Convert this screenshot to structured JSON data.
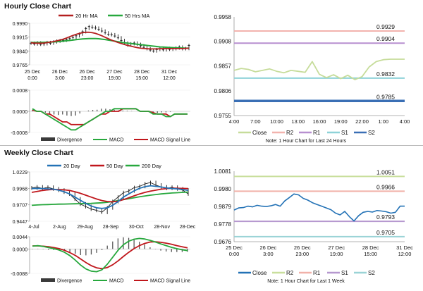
{
  "hourly_title": "Hourly Close Chart",
  "weekly_title": "Weekly Close Chart",
  "colors": {
    "ma_short": "#b41f1f",
    "ma_long": "#27a83d",
    "price": "#1a1a1a",
    "macd": "#27a83d",
    "signal": "#c0161b",
    "close": "#c6dc9a",
    "r2": "#f2b3ae",
    "r1": "#b78fd0",
    "s1": "#8ed2d8",
    "s2": "#3a6fb5",
    "wclose": "#2372b6",
    "wr2": "#c9df9d",
    "wr1": "#f1b1a9",
    "ws1": "#b698cf",
    "ws2": "#9ad3d6"
  },
  "chart_data": [
    {
      "type": "line",
      "id": "hourly_price",
      "legend": [
        "20 Hr MA",
        "50 Hrs MA"
      ],
      "yticks": [
        "0.9990",
        "0.9915",
        "0.9840",
        "0.9765"
      ],
      "ylim": [
        0.9765,
        0.999
      ],
      "xticks": [
        [
          "25 Dec",
          "0:00"
        ],
        [
          "26 Dec",
          "3:00"
        ],
        [
          "26 Dec",
          "23:00"
        ],
        [
          "27 Dec",
          "19:00"
        ],
        [
          "28 Dec",
          "15:00"
        ],
        [
          "31 Dec",
          "12:00"
        ]
      ],
      "close": [
        0.9882,
        0.9878,
        0.9884,
        0.9876,
        0.9879,
        0.9886,
        0.9882,
        0.9889,
        0.9893,
        0.9896,
        0.9898,
        0.9902,
        0.9907,
        0.9913,
        0.9922,
        0.9931,
        0.9944,
        0.9962,
        0.9972,
        0.9968,
        0.9964,
        0.9957,
        0.9948,
        0.9938,
        0.993,
        0.9928,
        0.9921,
        0.9911,
        0.9897,
        0.9883,
        0.9872,
        0.9879,
        0.9883,
        0.9876,
        0.9868,
        0.986,
        0.9852,
        0.9845,
        0.984,
        0.9848,
        0.9851,
        0.9846,
        0.9854,
        0.9849,
        0.9852,
        0.9856,
        0.9861,
        0.9852,
        0.9853,
        0.987
      ],
      "ma20": [
        0.9884,
        0.9883,
        0.9882,
        0.9882,
        0.9883,
        0.9885,
        0.9888,
        0.9891,
        0.9895,
        0.9899,
        0.9904,
        0.991,
        0.9917,
        0.9924,
        0.993,
        0.9935,
        0.9939,
        0.9941,
        0.9941,
        0.9939,
        0.9935,
        0.9929,
        0.9922,
        0.9914,
        0.9906,
        0.9899,
        0.9892,
        0.9886,
        0.988,
        0.9875,
        0.987,
        0.9866,
        0.9862,
        0.9858,
        0.9855,
        0.9853,
        0.9852,
        0.9851,
        0.9851,
        0.9851,
        0.9852,
        0.9853,
        0.9853,
        0.9853,
        0.9853,
        0.9853,
        0.9853,
        0.9853,
        0.9854,
        0.9855
      ],
      "ma50": [
        0.9886,
        0.9886,
        0.9886,
        0.9886,
        0.9887,
        0.9887,
        0.9888,
        0.9889,
        0.989,
        0.9892,
        0.9893,
        0.9895,
        0.9897,
        0.9899,
        0.9901,
        0.9903,
        0.9905,
        0.9906,
        0.9907,
        0.9907,
        0.9907,
        0.9906,
        0.9904,
        0.9902,
        0.9899,
        0.9896,
        0.9893,
        0.989,
        0.9887,
        0.9884,
        0.9882,
        0.988,
        0.9878,
        0.9876,
        0.9874,
        0.9872,
        0.987,
        0.9868,
        0.9866,
        0.9864,
        0.9862,
        0.9861,
        0.986,
        0.9859,
        0.9858,
        0.9857,
        0.9856,
        0.9856,
        0.9855,
        0.9855
      ]
    },
    {
      "type": "bar",
      "id": "hourly_macd",
      "legend": [
        "Divergence",
        "MACD",
        "MACD Signal Line"
      ],
      "yticks": [
        "0.0008",
        "0.0000",
        "-0.0008"
      ],
      "ylim": [
        -0.0008,
        0.0008
      ],
      "macd": [
        0.0001,
        0.0,
        0.0,
        -0.0001,
        -0.0002,
        -0.0003,
        -0.0004,
        -0.0005,
        -0.0006,
        -0.0007,
        -0.0007,
        -0.0006,
        -0.0005,
        -0.0004,
        -0.0003,
        -0.0002,
        -0.0001,
        0.0,
        0.0,
        0.0001,
        0.0001,
        0.0001,
        0.0001,
        0.0001,
        0.0001,
        0.0,
        0.0,
        0.0,
        -0.0001,
        -0.0001,
        -0.0001,
        -0.0002,
        -0.0002,
        -0.0001,
        -0.0001,
        -0.0001,
        -0.0001
      ],
      "signal": [
        5e-05,
        0.0,
        0.0,
        -0.0001,
        -0.0001,
        -0.0002,
        -0.0003,
        -0.0004,
        -0.0004,
        -0.0005,
        -0.0005,
        -0.0005,
        -0.0005,
        -0.0004,
        -0.0003,
        -0.0002,
        -0.0001,
        -0.0001,
        0.0,
        0.0,
        0.0,
        0.0001,
        0.0001,
        0.0001,
        0.0001,
        0.0,
        0.0,
        0.0,
        -5e-05,
        -0.0001,
        -0.0001,
        -0.0001,
        -0.0002,
        -0.0001,
        -0.0001,
        -0.0001,
        -0.0001
      ],
      "divergence": [
        5e-05,
        0.0,
        0.0,
        -5e-05,
        -0.0001,
        -0.00012,
        -0.00014,
        -0.00012,
        -0.00016,
        -0.00018,
        -0.00016,
        -8e-05,
        0.0,
        3e-05,
        5e-05,
        6e-05,
        0.0001,
        0.0001,
        8e-05,
        6e-05,
        4e-05,
        3e-05,
        2e-05,
        1e-05,
        0.0,
        0.0,
        -2e-05,
        -3e-05,
        -5e-05,
        -6e-05,
        -4e-05,
        -4e-05,
        -2e-05,
        0.0,
        0.0,
        0.0,
        0.0
      ]
    },
    {
      "type": "line",
      "id": "hourly_levels",
      "yticks": [
        "0.9958",
        "0.9908",
        "0.9857",
        "0.9806",
        "0.9755"
      ],
      "ylim": [
        0.9755,
        0.9958
      ],
      "xticks": [
        "4:00",
        "7:00",
        "10:00",
        "13:00",
        "16:00",
        "19:00",
        "22:00",
        "1:00",
        "4:00"
      ],
      "levels": [
        {
          "name": "R2",
          "value": 0.9929,
          "label": "0.9929"
        },
        {
          "name": "R1",
          "value": 0.9904,
          "label": "0.9904"
        },
        {
          "name": "S1",
          "value": 0.9832,
          "label": "0.9832"
        },
        {
          "name": "S2",
          "value": 0.9785,
          "label": "0.9785"
        }
      ],
      "close": [
        0.9848,
        0.9852,
        0.985,
        0.9845,
        0.9848,
        0.9851,
        0.9846,
        0.9843,
        0.9848,
        0.9846,
        0.9844,
        0.9866,
        0.984,
        0.9833,
        0.9839,
        0.9831,
        0.9838,
        0.9829,
        0.9835,
        0.9855,
        0.9866,
        0.987,
        0.9871,
        0.9871,
        0.9871
      ],
      "legend": [
        "Close",
        "R2",
        "R1",
        "S1",
        "S2"
      ],
      "note": "Note: 1 Hour Chart for Last 24 Hours"
    },
    {
      "type": "line",
      "id": "weekly_price",
      "legend": [
        "20 Day",
        "50 Day",
        "200 Day"
      ],
      "yticks": [
        "1.0229",
        "0.9968",
        "0.9707",
        "0.9447"
      ],
      "ylim": [
        0.9447,
        1.0229
      ],
      "xticks": [
        "4-Jul",
        "2-Aug",
        "29-Aug",
        "28-Sep",
        "30-Oct",
        "28-Nov",
        "28-Dec"
      ],
      "close": [
        0.9975,
        0.999,
        0.9965,
        0.9985,
        0.996,
        0.994,
        0.991,
        0.988,
        0.98,
        0.972,
        0.968,
        0.964,
        0.962,
        0.959,
        0.966,
        0.976,
        0.983,
        0.99,
        0.993,
        0.998,
        1.0,
        1.004,
        1.006,
        1.002,
        0.999,
        0.997,
        0.9985,
        0.996,
        0.994,
        0.988
      ],
      "d20": [
        0.9965,
        0.9968,
        0.9965,
        0.996,
        0.9955,
        0.994,
        0.9915,
        0.988,
        0.983,
        0.978,
        0.973,
        0.969,
        0.966,
        0.965,
        0.966,
        0.97,
        0.976,
        0.983,
        0.988,
        0.993,
        0.997,
        0.9995,
        1.001,
        1.0,
        0.999,
        0.9975,
        0.9965,
        0.996,
        0.995,
        0.9935
      ],
      "d50": [
        0.9905,
        0.992,
        0.9935,
        0.9945,
        0.995,
        0.995,
        0.9945,
        0.9935,
        0.9915,
        0.989,
        0.986,
        0.983,
        0.98,
        0.9775,
        0.976,
        0.9755,
        0.9765,
        0.979,
        0.982,
        0.985,
        0.988,
        0.9905,
        0.9925,
        0.994,
        0.9955,
        0.9965,
        0.997,
        0.997,
        0.9968,
        0.9965
      ],
      "d200": [
        0.97,
        0.9705,
        0.971,
        0.9712,
        0.9715,
        0.9718,
        0.972,
        0.9722,
        0.9724,
        0.9726,
        0.9728,
        0.973,
        0.9735,
        0.974,
        0.9748,
        0.976,
        0.9775,
        0.979,
        0.9805,
        0.982,
        0.9835,
        0.9848,
        0.986,
        0.987,
        0.988,
        0.9888,
        0.9895,
        0.99,
        0.9905,
        0.991
      ]
    },
    {
      "type": "bar",
      "id": "weekly_macd",
      "legend": [
        "Divergence",
        "MACD",
        "MACD Signal Line"
      ],
      "yticks": [
        "0.0044",
        "0.0000",
        "-0.0088"
      ],
      "ylim": [
        -0.0088,
        0.0044
      ],
      "macd": [
        0.001,
        0.0012,
        0.0009,
        0.0005,
        0.0001,
        -0.0004,
        -0.0012,
        -0.0024,
        -0.004,
        -0.0058,
        -0.0072,
        -0.008,
        -0.0082,
        -0.0075,
        -0.0055,
        -0.003,
        -0.0005,
        0.0015,
        0.0028,
        0.0035,
        0.0038,
        0.0036,
        0.0031,
        0.0025,
        0.0018,
        0.0012,
        0.0006,
        0.0001,
        -0.0003,
        -0.0006
      ],
      "signal": [
        0.0011,
        0.0011,
        0.001,
        0.0008,
        0.0005,
        0.0001,
        -0.0005,
        -0.0013,
        -0.0023,
        -0.0036,
        -0.0049,
        -0.006,
        -0.0068,
        -0.0071,
        -0.0067,
        -0.0057,
        -0.0043,
        -0.0027,
        -0.0012,
        0.0001,
        0.0012,
        0.002,
        0.0025,
        0.0026,
        0.0024,
        0.0021,
        0.0017,
        0.0012,
        0.0008,
        0.0004
      ],
      "divergence": [
        -0.0001,
        0.0001,
        -0.0001,
        -0.0003,
        -0.0004,
        -0.0005,
        -0.0007,
        -0.0011,
        -0.0017,
        -0.0022,
        -0.0023,
        -0.002,
        -0.0014,
        -0.0004,
        0.0012,
        0.0027,
        0.0038,
        0.0042,
        0.004,
        0.0034,
        0.0026,
        0.0016,
        0.0006,
        -0.0001,
        -0.0006,
        -0.0009,
        -0.0011,
        -0.0011,
        -0.0011,
        -0.001
      ]
    },
    {
      "type": "line",
      "id": "weekly_levels",
      "yticks": [
        "1.0081",
        "0.9980",
        "0.9879",
        "0.9778",
        "0.9676"
      ],
      "ylim": [
        0.9676,
        1.0081
      ],
      "xticks": [
        [
          "25 Dec",
          "0:00"
        ],
        [
          "26 Dec",
          "3:00"
        ],
        [
          "26 Dec",
          "23:00"
        ],
        [
          "27 Dec",
          "19:00"
        ],
        [
          "28 Dec",
          "15:00"
        ],
        [
          "31 Dec",
          "12:00"
        ]
      ],
      "levels": [
        {
          "name": "R2",
          "value": 1.0051,
          "label": "1.0051"
        },
        {
          "name": "R1",
          "value": 0.9966,
          "label": "0.9966"
        },
        {
          "name": "S1",
          "value": 0.9793,
          "label": "0.9793"
        },
        {
          "name": "S2",
          "value": 0.9705,
          "label": "0.9705"
        }
      ],
      "close": [
        0.9858,
        0.987,
        0.9872,
        0.988,
        0.9876,
        0.9885,
        0.988,
        0.9878,
        0.9882,
        0.989,
        0.988,
        0.991,
        0.993,
        0.995,
        0.9945,
        0.9925,
        0.9915,
        0.99,
        0.989,
        0.988,
        0.987,
        0.986,
        0.984,
        0.983,
        0.985,
        0.982,
        0.9795,
        0.9825,
        0.9845,
        0.985,
        0.9846,
        0.9855,
        0.9852,
        0.9848,
        0.984,
        0.9845,
        0.988,
        0.988
      ],
      "legend": [
        "Close",
        "R2",
        "R1",
        "S1",
        "S2"
      ],
      "note": "Note: 1 Hour Chart for Last 1 Week"
    }
  ]
}
